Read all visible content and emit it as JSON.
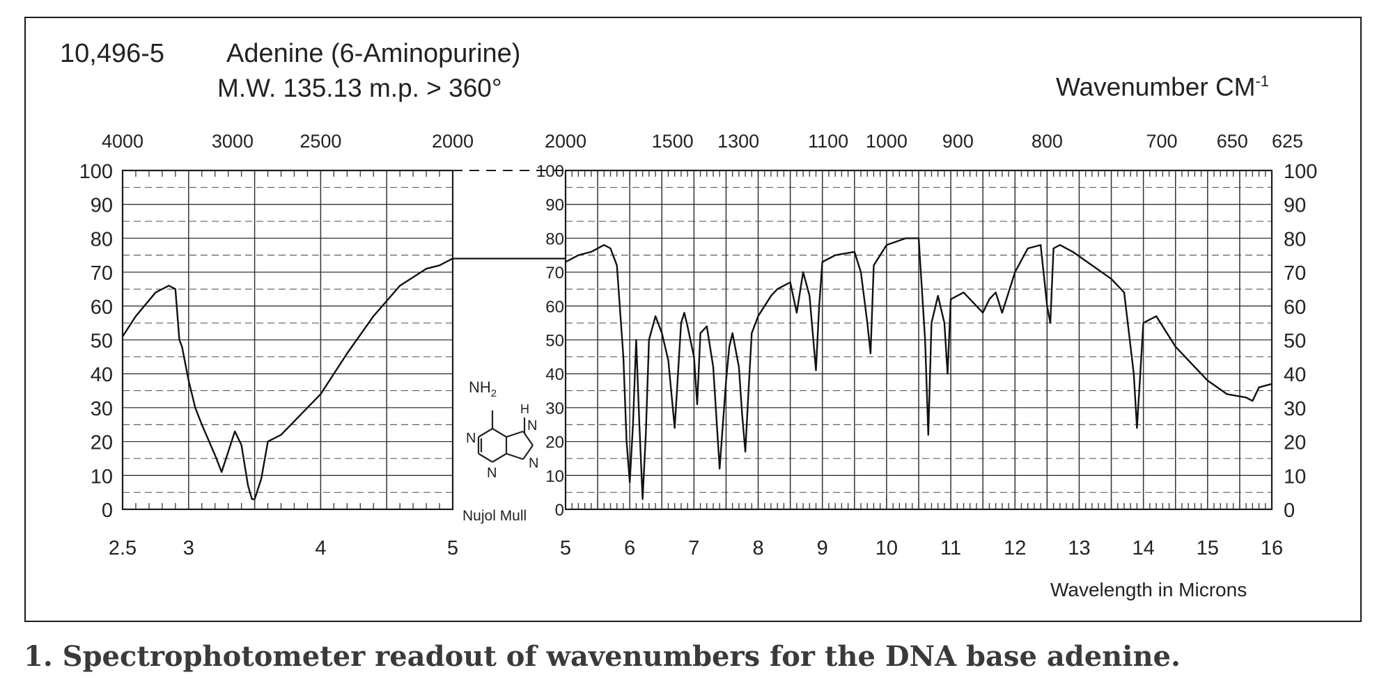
{
  "header": {
    "catalog_number": "10,496-5",
    "compound_name": "Adenine (6-Aminopurine)",
    "properties": "M.W. 135.13 m.p. > 360°",
    "wavenumber_unit": "Wavenumber CM",
    "wavenumber_unit_exp": "-1",
    "wavelength_unit": "Wavelength in Microns",
    "sample_note": "Nujol Mull"
  },
  "structure": {
    "amine_label": "NH",
    "amine_sub": "2",
    "h_label": "H",
    "n_label": "N"
  },
  "caption": "1. Spectrophotometer readout of wavenumbers for the DNA base adenine.",
  "chart_data": {
    "type": "line",
    "title": "Adenine (6-Aminopurine)",
    "xlabel": "Wavelength in Microns",
    "ylabel": "",
    "x_top_label": "Wavenumber CM-1",
    "xlim": [
      2.5,
      16
    ],
    "ylim": [
      0,
      100
    ],
    "grid": true,
    "panels": [
      {
        "name": "left",
        "x_range": [
          2.5,
          5
        ],
        "bottom_ticks": [
          {
            "v": 2.5,
            "label": "2.5"
          },
          {
            "v": 3,
            "label": "3"
          },
          {
            "v": 4,
            "label": "4"
          },
          {
            "v": 5,
            "label": "5"
          }
        ],
        "top_ticks": [
          {
            "v": 2.5,
            "label": "4000"
          },
          {
            "v": 3.333,
            "label": "3000"
          },
          {
            "v": 4,
            "label": "2500"
          },
          {
            "v": 5,
            "label": "2000"
          }
        ]
      },
      {
        "name": "right",
        "x_range": [
          5,
          16
        ],
        "bottom_ticks": [
          {
            "v": 5,
            "label": "5"
          },
          {
            "v": 6,
            "label": "6"
          },
          {
            "v": 7,
            "label": "7"
          },
          {
            "v": 8,
            "label": "8"
          },
          {
            "v": 9,
            "label": "9"
          },
          {
            "v": 10,
            "label": "10"
          },
          {
            "v": 11,
            "label": "11"
          },
          {
            "v": 12,
            "label": "12"
          },
          {
            "v": 13,
            "label": "13"
          },
          {
            "v": 14,
            "label": "14"
          },
          {
            "v": 15,
            "label": "15"
          },
          {
            "v": 16,
            "label": "16"
          }
        ],
        "top_ticks": [
          {
            "v": 5,
            "label": "2000"
          },
          {
            "v": 6.667,
            "label": "1500"
          },
          {
            "v": 7.692,
            "label": "1300"
          },
          {
            "v": 9.091,
            "label": "1100"
          },
          {
            "v": 10,
            "label": "1000"
          },
          {
            "v": 11.111,
            "label": "900"
          },
          {
            "v": 12.5,
            "label": "800"
          },
          {
            "v": 14.286,
            "label": "700"
          },
          {
            "v": 15.385,
            "label": "650"
          },
          {
            "v": 16,
            "label": "625"
          }
        ]
      }
    ],
    "y_ticks": [
      "100",
      "90",
      "80",
      "70",
      "60",
      "50",
      "40",
      "30",
      "20",
      "10",
      "0"
    ],
    "series": [
      {
        "x": [
          2.5,
          2.6,
          2.75,
          2.85,
          2.9,
          2.93,
          2.95,
          3.0,
          3.05,
          3.1,
          3.2,
          3.25,
          3.3,
          3.35,
          3.4,
          3.45,
          3.48,
          3.5,
          3.55,
          3.6,
          3.7,
          3.8,
          3.9,
          4.0,
          4.2,
          4.4,
          4.6,
          4.8,
          4.9,
          5.0
        ],
        "y": [
          51,
          57,
          64,
          66,
          65,
          50,
          48,
          38,
          30,
          25,
          16,
          11,
          17,
          23,
          19,
          7,
          3,
          3,
          9,
          20,
          22,
          26,
          30,
          34,
          46,
          57,
          66,
          71,
          72,
          74
        ]
      },
      {
        "x": [
          5.0,
          5.2,
          5.4,
          5.6,
          5.7,
          5.8,
          5.9,
          5.95,
          6.0,
          6.05,
          6.1,
          6.15,
          6.2,
          6.25,
          6.3,
          6.4,
          6.5,
          6.6,
          6.7,
          6.8,
          6.85,
          6.9,
          7.0,
          7.05,
          7.1,
          7.2,
          7.3,
          7.4,
          7.5,
          7.55,
          7.6,
          7.7,
          7.75,
          7.8,
          7.85,
          7.9,
          8.0,
          8.1,
          8.2,
          8.3,
          8.5,
          8.6,
          8.7,
          8.8,
          8.9,
          8.95,
          9.0,
          9.2,
          9.5,
          9.6,
          9.7,
          9.75,
          9.8,
          10.0,
          10.3,
          10.5,
          10.6,
          10.65,
          10.7,
          10.8,
          10.9,
          10.95,
          11.0,
          11.2,
          11.4,
          11.5,
          11.6,
          11.7,
          11.8,
          11.9,
          12.0,
          12.2,
          12.4,
          12.5,
          12.55,
          12.6,
          12.7,
          12.9,
          13.2,
          13.5,
          13.7,
          13.85,
          13.9,
          14.0,
          14.2,
          14.5,
          14.8,
          15.0,
          15.3,
          15.6,
          15.7,
          15.8,
          16.0
        ],
        "y": [
          73,
          75,
          76,
          78,
          77,
          72,
          45,
          20,
          8,
          25,
          50,
          25,
          3,
          22,
          50,
          57,
          52,
          44,
          24,
          55,
          58,
          54,
          45,
          31,
          52,
          54,
          42,
          12,
          38,
          48,
          52,
          42,
          28,
          17,
          35,
          52,
          57,
          60,
          63,
          65,
          67,
          58,
          70,
          63,
          41,
          60,
          73,
          75,
          76,
          70,
          55,
          46,
          72,
          78,
          80,
          80,
          50,
          22,
          55,
          63,
          55,
          40,
          62,
          64,
          60,
          58,
          62,
          64,
          58,
          64,
          70,
          77,
          78,
          60,
          55,
          77,
          78,
          76,
          72,
          68,
          64,
          40,
          24,
          55,
          57,
          48,
          42,
          38,
          34,
          33,
          32,
          36,
          37
        ]
      }
    ]
  }
}
